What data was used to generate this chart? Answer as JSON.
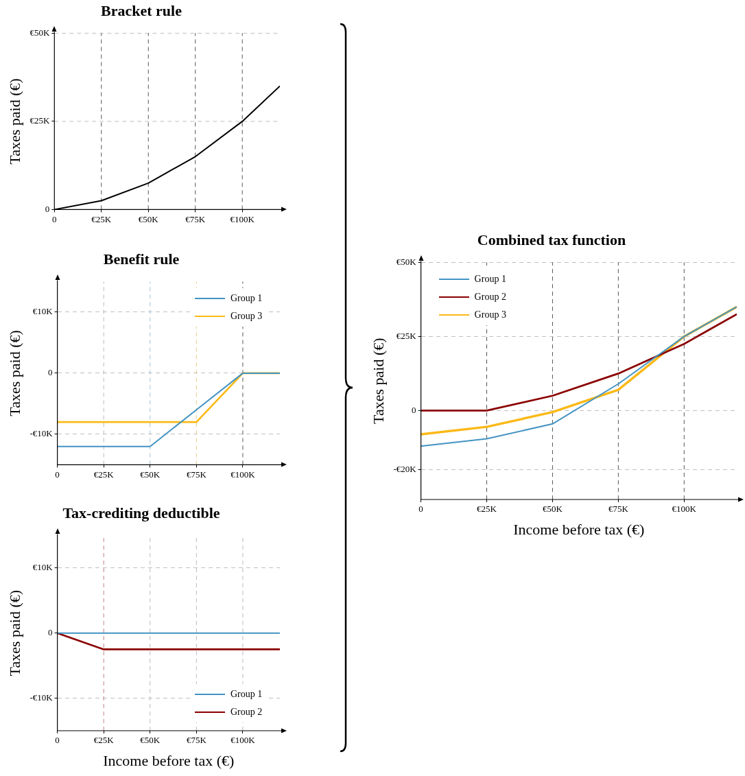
{
  "chart_data": [
    {
      "type": "line",
      "title": "Bracket rule",
      "ylabel": "Taxes paid (€)",
      "x": [
        0,
        25,
        50,
        75,
        100,
        120
      ],
      "series": [
        {
          "color": "#000000",
          "values": [
            0,
            2.5,
            7.5,
            15,
            25,
            35
          ]
        }
      ],
      "xlim": [
        0,
        120
      ],
      "xticks": [
        {
          "value": 0,
          "label": "0"
        },
        {
          "value": 25,
          "label": "€25K"
        },
        {
          "value": 50,
          "label": "€50K"
        },
        {
          "value": 75,
          "label": "€75K"
        },
        {
          "value": 100,
          "label": "€100K"
        }
      ],
      "ylim": [
        0,
        50
      ],
      "yticks": [
        {
          "value": 0,
          "label": "0"
        },
        {
          "value": 25,
          "label": "€25K"
        },
        {
          "value": 50,
          "label": "€50K"
        }
      ],
      "grid": false,
      "legend": false,
      "ref_lines": [
        {
          "axis": "y",
          "value": 25,
          "color": "#c0c0c0",
          "line_style": "dashed"
        },
        {
          "axis": "y",
          "value": 50,
          "color": "#c0c0c0",
          "line_style": "dashed"
        },
        {
          "axis": "x",
          "value": 25,
          "color": "#555555",
          "line_style": "dashed"
        },
        {
          "axis": "x",
          "value": 50,
          "color": "#555555",
          "line_style": "dashed"
        },
        {
          "axis": "x",
          "value": 75,
          "color": "#555555",
          "line_style": "dashed"
        },
        {
          "axis": "x",
          "value": 100,
          "color": "#555555",
          "line_style": "dashed"
        }
      ]
    },
    {
      "type": "line",
      "title": "Benefit rule",
      "ylabel": "Taxes paid (€)",
      "x": [
        0,
        50,
        75,
        100,
        120
      ],
      "series": [
        {
          "name": "Group 1",
          "color": "#4393c3",
          "values": [
            -12,
            -12,
            -6,
            0,
            0
          ]
        },
        {
          "name": "Group 3",
          "color": "#fbb917",
          "values": [
            -8,
            -8,
            -8,
            0,
            0
          ]
        }
      ],
      "xlim": [
        0,
        120
      ],
      "xticks": [
        {
          "value": 0,
          "label": "0"
        },
        {
          "value": 25,
          "label": "€25K"
        },
        {
          "value": 50,
          "label": "€50K"
        },
        {
          "value": 75,
          "label": "€75K"
        },
        {
          "value": 100,
          "label": "€100K"
        }
      ],
      "ylim": [
        -15,
        15
      ],
      "yticks": [
        {
          "value": -10,
          "label": "-€10K"
        },
        {
          "value": 0,
          "label": "0"
        },
        {
          "value": 10,
          "label": "€10K"
        }
      ],
      "grid": "y",
      "legend": "top right",
      "ref_lines": [
        {
          "axis": "x",
          "value": 25,
          "color": "#bbbbbb",
          "line_style": "dashed"
        },
        {
          "axis": "x",
          "value": 50,
          "color": "#9ec5e0",
          "line_style": "dashed"
        },
        {
          "axis": "x",
          "value": 75,
          "color": "#e8cc85",
          "line_style": "dashed"
        },
        {
          "axis": "x",
          "value": 100,
          "color": "#555555",
          "line_style": "dashed"
        }
      ]
    },
    {
      "type": "line",
      "title": "Tax-crediting deductible",
      "xlabel": "Income before tax (€)",
      "ylabel": "Taxes paid (€)",
      "x": [
        0,
        25,
        120
      ],
      "series": [
        {
          "name": "Group 1",
          "color": "#4393c3",
          "values": [
            0,
            0,
            0
          ]
        },
        {
          "name": "Group 2",
          "color": "#8b0000",
          "values": [
            0,
            -2.5,
            -2.5
          ]
        }
      ],
      "xlim": [
        0,
        120
      ],
      "xticks": [
        {
          "value": 0,
          "label": "0"
        },
        {
          "value": 25,
          "label": "€25K"
        },
        {
          "value": 50,
          "label": "€50K"
        },
        {
          "value": 75,
          "label": "€75K"
        },
        {
          "value": 100,
          "label": "€100K"
        }
      ],
      "ylim": [
        -15,
        15
      ],
      "yticks": [
        {
          "value": -10,
          "label": "-€10K"
        },
        {
          "value": 0,
          "label": "0"
        },
        {
          "value": 10,
          "label": "€10K"
        }
      ],
      "grid": "y",
      "legend": "bottom right",
      "ref_lines": [
        {
          "axis": "x",
          "value": 25,
          "color": "#c08080",
          "line_style": "dashed"
        },
        {
          "axis": "x",
          "value": 50,
          "color": "#bbbbbb",
          "line_style": "dashed"
        },
        {
          "axis": "x",
          "value": 75,
          "color": "#bbbbbb",
          "line_style": "dashed"
        },
        {
          "axis": "x",
          "value": 100,
          "color": "#bbbbbb",
          "line_style": "dashed"
        }
      ]
    },
    {
      "type": "line",
      "title": "Combined tax function",
      "xlabel": "Income before tax (€)",
      "ylabel": "Taxes paid (€)",
      "x": [
        0,
        25,
        50,
        75,
        100,
        120
      ],
      "series": [
        {
          "name": "Group 1",
          "color": "#4393c3",
          "values": [
            -12,
            -9.5,
            -4.5,
            9,
            25,
            35
          ]
        },
        {
          "name": "Group 2",
          "color": "#8b0000",
          "values": [
            0,
            0,
            5,
            12.5,
            22.5,
            32.5
          ]
        },
        {
          "name": "Group 3",
          "color": "#fbb917",
          "values": [
            -8,
            -5.5,
            -0.5,
            7,
            25,
            35
          ]
        }
      ],
      "xlim": [
        0,
        120
      ],
      "xticks": [
        {
          "value": 0,
          "label": "0"
        },
        {
          "value": 25,
          "label": "€25K"
        },
        {
          "value": 50,
          "label": "€50K"
        },
        {
          "value": 75,
          "label": "€75K"
        },
        {
          "value": 100,
          "label": "€100K"
        }
      ],
      "ylim": [
        -30,
        50
      ],
      "yticks": [
        {
          "value": -20,
          "label": "-€20K"
        },
        {
          "value": 0,
          "label": "0"
        },
        {
          "value": 25,
          "label": "€25K"
        },
        {
          "value": 50,
          "label": "€50K"
        }
      ],
      "grid": "y",
      "legend": "top left",
      "ref_lines": [
        {
          "axis": "x",
          "value": 25,
          "color": "#555555",
          "line_style": "dashed"
        },
        {
          "axis": "x",
          "value": 50,
          "color": "#555555",
          "line_style": "dashed"
        },
        {
          "axis": "x",
          "value": 75,
          "color": "#555555",
          "line_style": "dashed"
        },
        {
          "axis": "x",
          "value": 100,
          "color": "#555555",
          "line_style": "dashed"
        }
      ]
    }
  ]
}
